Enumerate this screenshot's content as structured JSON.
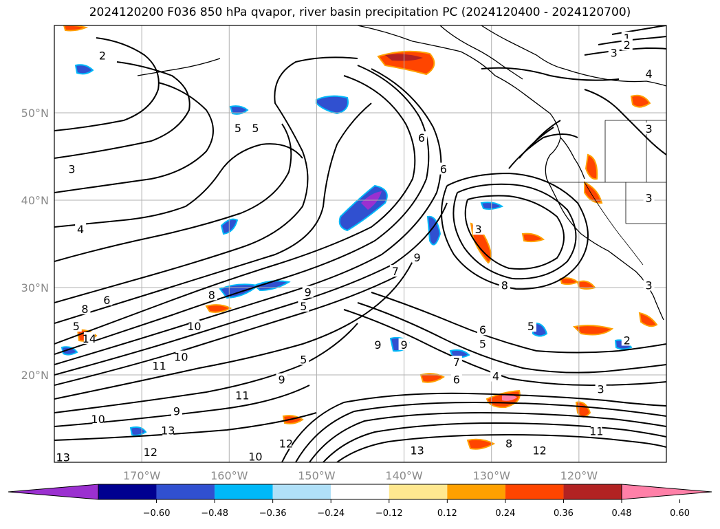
{
  "title": "2024120200 F036 850 hPa qvapor, river basin precipitation PC (2024120400 - 2024120700)",
  "map": {
    "lat_range": [
      10,
      60
    ],
    "lon_range": [
      -180,
      -110
    ],
    "lat_labels": [
      "20°N",
      "30°N",
      "40°N",
      "50°N"
    ],
    "lat_values": [
      20,
      30,
      40,
      50
    ],
    "lon_labels": [
      "170°W",
      "160°W",
      "150°W",
      "140°W",
      "130°W",
      "120°W"
    ],
    "lon_values": [
      -170,
      -160,
      -150,
      -140,
      -130,
      -120
    ],
    "grid": true,
    "contour_labels": [
      {
        "text": "1",
        "lon": -114.5,
        "lat": 58.5
      },
      {
        "text": "2",
        "lon": -114.5,
        "lat": 57.7
      },
      {
        "text": "3",
        "lon": -116,
        "lat": 56.8
      },
      {
        "text": "4",
        "lon": -112,
        "lat": 54.4
      },
      {
        "text": "2",
        "lon": -174.5,
        "lat": 56.5
      },
      {
        "text": "5",
        "lon": -159,
        "lat": 48.2
      },
      {
        "text": "5",
        "lon": -157,
        "lat": 48.2
      },
      {
        "text": "3",
        "lon": -178,
        "lat": 43.5
      },
      {
        "text": "4",
        "lon": -177,
        "lat": 36.6
      },
      {
        "text": "6",
        "lon": -138,
        "lat": 47.1
      },
      {
        "text": "6",
        "lon": -135.5,
        "lat": 43.5
      },
      {
        "text": "3",
        "lon": -131.5,
        "lat": 36.6
      },
      {
        "text": "3",
        "lon": -112,
        "lat": 48.1
      },
      {
        "text": "3",
        "lon": -112,
        "lat": 40.2
      },
      {
        "text": "8",
        "lon": -128.5,
        "lat": 30.2
      },
      {
        "text": "3",
        "lon": -112,
        "lat": 30.2
      },
      {
        "text": "8",
        "lon": -176.5,
        "lat": 27.5
      },
      {
        "text": "6",
        "lon": -174,
        "lat": 28.5
      },
      {
        "text": "5",
        "lon": -177.5,
        "lat": 25.5
      },
      {
        "text": "5",
        "lon": -125.5,
        "lat": 25.5
      },
      {
        "text": "6",
        "lon": -131,
        "lat": 25.1
      },
      {
        "text": "5",
        "lon": -131,
        "lat": 23.5
      },
      {
        "text": "2",
        "lon": -114.5,
        "lat": 23.9
      },
      {
        "text": "4",
        "lon": -129.5,
        "lat": 19.8
      },
      {
        "text": "6",
        "lon": -134,
        "lat": 19.4
      },
      {
        "text": "7",
        "lon": -134,
        "lat": 21.4
      },
      {
        "text": "9",
        "lon": -143,
        "lat": 23.4
      },
      {
        "text": "10",
        "lon": -164,
        "lat": 25.5
      },
      {
        "text": "10",
        "lon": -165.5,
        "lat": 22
      },
      {
        "text": "11",
        "lon": -168,
        "lat": 21
      },
      {
        "text": "11",
        "lon": -158.5,
        "lat": 17.6
      },
      {
        "text": "9",
        "lon": -166,
        "lat": 15.8
      },
      {
        "text": "9",
        "lon": -154,
        "lat": 19.4
      },
      {
        "text": "13",
        "lon": -167,
        "lat": 13.6
      },
      {
        "text": "12",
        "lon": -169,
        "lat": 11.1
      },
      {
        "text": "12",
        "lon": -153.5,
        "lat": 12.1
      },
      {
        "text": "13",
        "lon": -138.5,
        "lat": 11.3
      },
      {
        "text": "12",
        "lon": -124.5,
        "lat": 11.3
      },
      {
        "text": "10",
        "lon": -157,
        "lat": 10.6
      },
      {
        "text": "11",
        "lon": -118,
        "lat": 13.5
      },
      {
        "text": "3",
        "lon": -117.5,
        "lat": 18.3
      },
      {
        "text": "8",
        "lon": -128,
        "lat": 12.1
      },
      {
        "text": "13",
        "lon": -179,
        "lat": 10.5
      },
      {
        "text": "8",
        "lon": -162,
        "lat": 29.1
      },
      {
        "text": "14",
        "lon": -176,
        "lat": 24.1
      },
      {
        "text": "10",
        "lon": -175,
        "lat": 14.9
      },
      {
        "text": "5",
        "lon": -151.5,
        "lat": 21.7
      },
      {
        "text": "9",
        "lon": -151,
        "lat": 29.4
      },
      {
        "text": "5",
        "lon": -151.5,
        "lat": 27.8
      },
      {
        "text": "9",
        "lon": -140,
        "lat": 23.4
      },
      {
        "text": "7",
        "lon": -141,
        "lat": 31.8
      },
      {
        "text": "9",
        "lon": -138.5,
        "lat": 33.4
      }
    ]
  },
  "colorbar": {
    "colors": [
      "#9b30d0",
      "#000090",
      "#3050d0",
      "#00b8f8",
      "#b0e0f8",
      "#ffffff",
      "#ffe890",
      "#ffa000",
      "#ff4500",
      "#b22222",
      "#ff80a8"
    ],
    "tick_labels": [
      "−0.60",
      "−0.48",
      "−0.36",
      "−0.24",
      "−0.12",
      "0.12",
      "0.24",
      "0.36",
      "0.48",
      "0.60"
    ]
  }
}
